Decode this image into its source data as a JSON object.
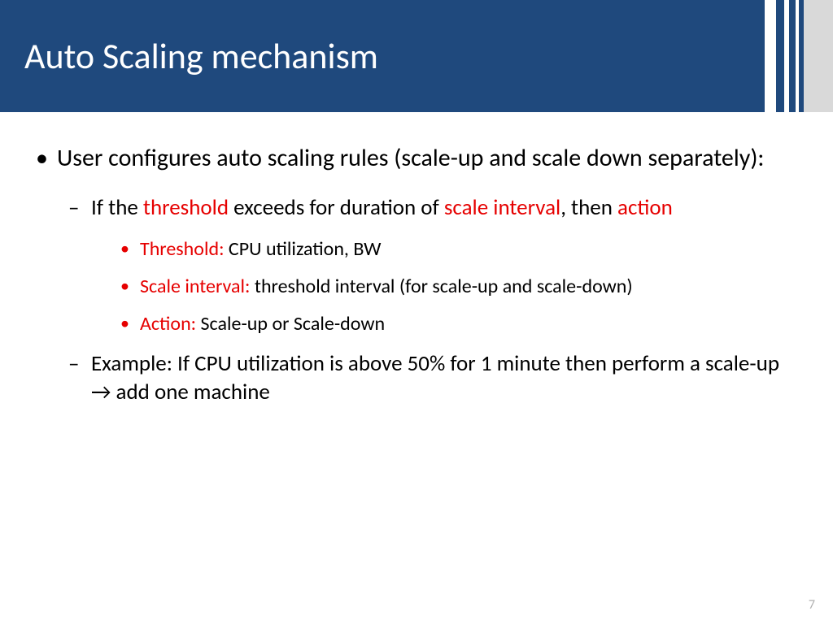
{
  "header": {
    "title": "Auto Scaling mechanism",
    "bg_color": "#1f497d",
    "title_color": "#ffffff",
    "title_fontsize": 44,
    "stripe_colors": [
      "#ffffff",
      "#1f497d",
      "#ffffff",
      "#1f497d",
      "#ffffff",
      "#1f497d",
      "#d9d9d9"
    ]
  },
  "body": {
    "text_color": "#000000",
    "highlight_color": "#e60000",
    "lvl1_fontsize": 30,
    "lvl2_fontsize": 27,
    "lvl3_fontsize": 24,
    "b1": "User configures auto scaling rules (scale-up and scale down separately):",
    "b2_p1": "If the ",
    "b2_h1": "threshold",
    "b2_p2": " exceeds for duration of ",
    "b2_h2": "scale interval",
    "b2_p3": ", then ",
    "b2_h3": "action",
    "b3_h": "Threshold: ",
    "b3_t": "CPU utilization, BW",
    "b4_h": "Scale interval: ",
    "b4_t": "threshold interval (for scale-up and scale-down)",
    "b5_h": "Action: ",
    "b5_t": "Scale-up or Scale-down",
    "b6": "Example: If CPU utilization is above 50% for 1 minute then perform a scale-up → add one machine"
  },
  "footer": {
    "page_number": "7",
    "color": "#b0b0b0"
  }
}
